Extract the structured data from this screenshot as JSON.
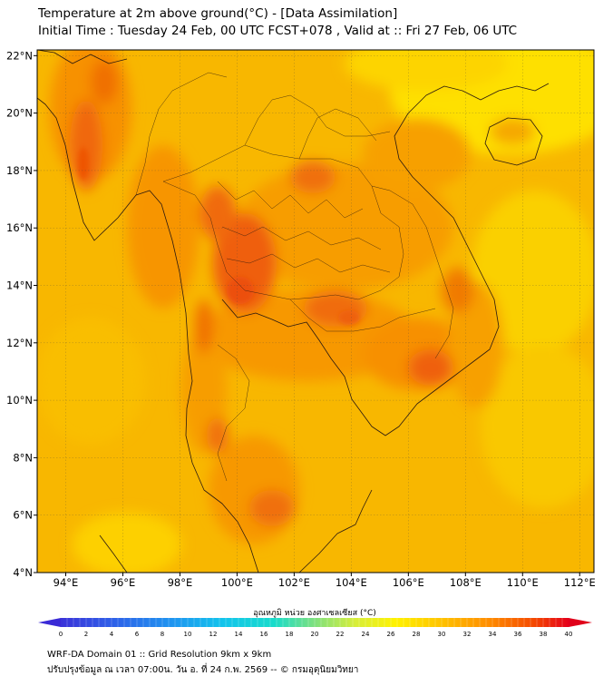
{
  "title": {
    "line1": "Temperature at 2m above ground(°C) - [Data Assimilation]",
    "line2": "Initial Time : Tuesday 24 Feb, 00 UTC FCST+078 , Valid at :: Fri 27 Feb, 06 UTC"
  },
  "map": {
    "lon_range": [
      93,
      112.5
    ],
    "lat_range": [
      4,
      22.2
    ],
    "lon_ticks": [
      {
        "value": 94,
        "label": "94°E"
      },
      {
        "value": 96,
        "label": "96°E"
      },
      {
        "value": 98,
        "label": "98°E"
      },
      {
        "value": 100,
        "label": "100°E"
      },
      {
        "value": 102,
        "label": "102°E"
      },
      {
        "value": 104,
        "label": "104°E"
      },
      {
        "value": 106,
        "label": "106°E"
      },
      {
        "value": 108,
        "label": "108°E"
      },
      {
        "value": 110,
        "label": "110°E"
      },
      {
        "value": 112,
        "label": "112°E"
      }
    ],
    "lat_ticks": [
      {
        "value": 4,
        "label": "4°N"
      },
      {
        "value": 6,
        "label": "6°N"
      },
      {
        "value": 8,
        "label": "8°N"
      },
      {
        "value": 10,
        "label": "10°N"
      },
      {
        "value": 12,
        "label": "12°N"
      },
      {
        "value": 14,
        "label": "14°N"
      },
      {
        "value": 16,
        "label": "16°N"
      },
      {
        "value": 18,
        "label": "18°N"
      },
      {
        "value": 20,
        "label": "20°N"
      },
      {
        "value": 22,
        "label": "22°N"
      }
    ],
    "background_color": "#f8b700",
    "grid": true
  },
  "colorbar": {
    "label": "อุณหภูมิ หน่วย องศาเซลเซียส (°C)",
    "min": 0,
    "max": 40,
    "ticks": [
      "0",
      "2",
      "4",
      "6",
      "8",
      "10",
      "12",
      "14",
      "16",
      "18",
      "20",
      "22",
      "24",
      "26",
      "28",
      "30",
      "32",
      "34",
      "36",
      "38",
      "40"
    ],
    "under_color": "#3a2ad6",
    "over_color": "#e0001a"
  },
  "footer": {
    "line1": "WRF-DA Domain 01 :: Grid Resolution 9km x 9km",
    "line2": "ปรับปรุงข้อมูล ณ เวลา 07:00น. วัน อ. ที่ 24 ก.พ. 2569 -- © กรมอุตุนิยมวิทยา"
  }
}
